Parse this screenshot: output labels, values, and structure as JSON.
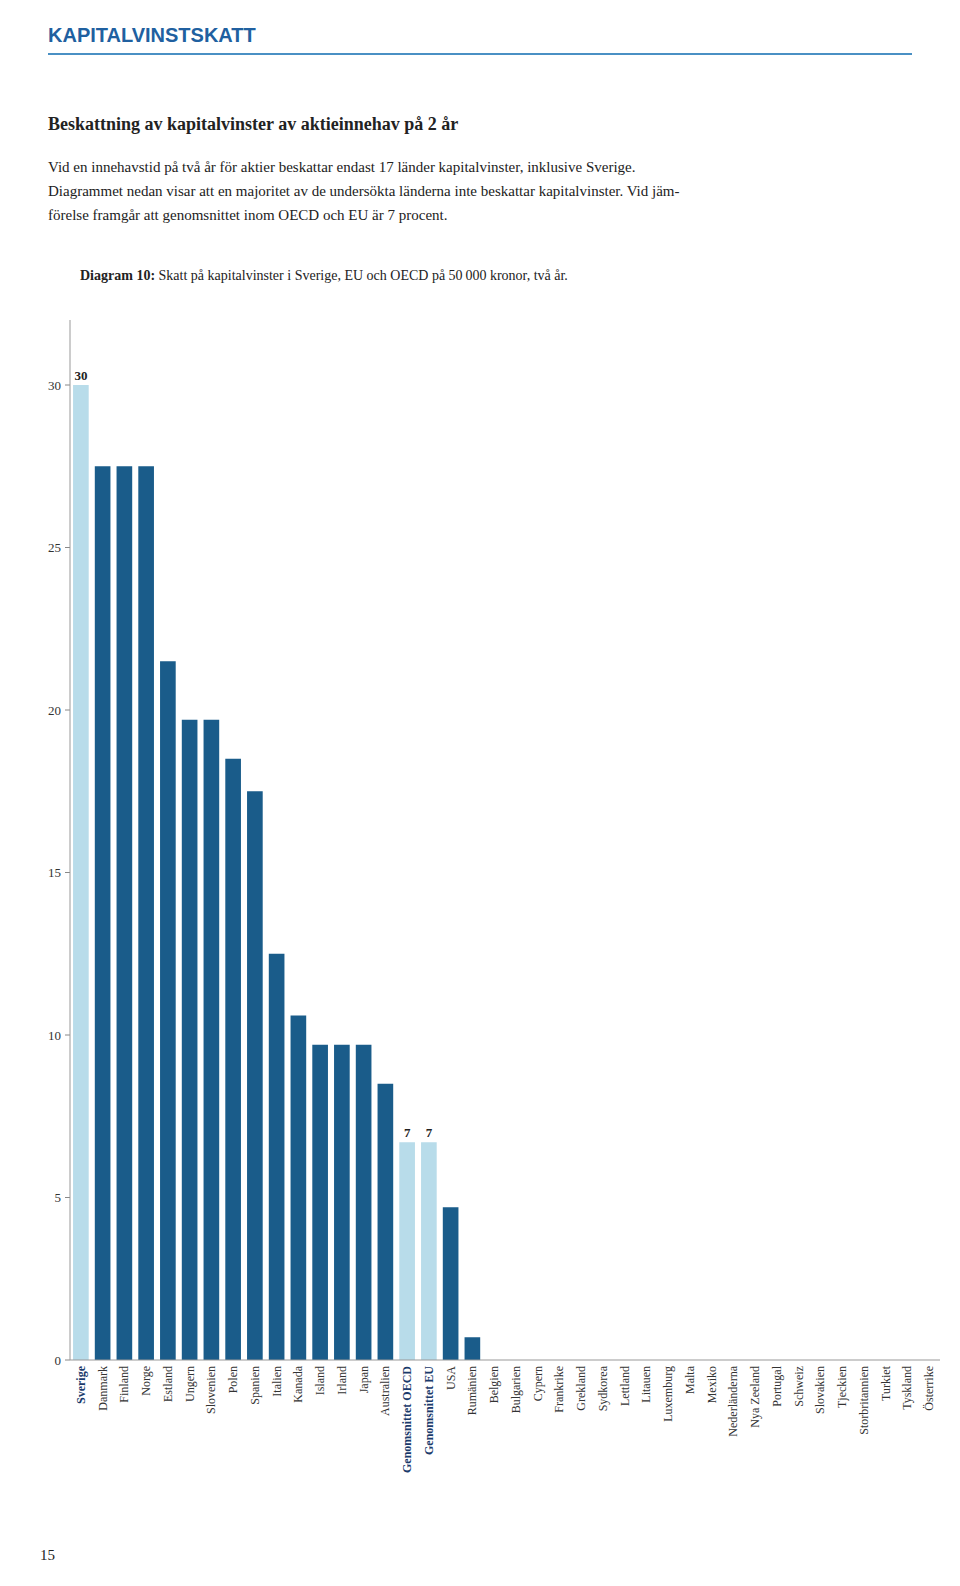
{
  "chart_data": {
    "type": "bar",
    "title": "KAPITALVINSTSKATT",
    "subtitle": "Beskattning av kapitalvinster av aktieinnehav på 2 år",
    "annotations": [
      "Vid en innehavstid på två år för aktier beskattar endast 17 länder kapitalvinster, inklusive Sverige.",
      "Diagrammet nedan visar att en majoritet av de undersökta länderna inte beskattar kapitalvinster. Vid jäm-",
      "förelse framgår att genomsnittet inom OECD och EU är 7 procent.",
      "Diagram 10:",
      " Skatt på kapitalvinster i Sverige, EU och OECD på 50 000 kronor, två år.",
      "15"
    ],
    "categories": [
      "Sverige",
      "Danmark",
      "Finland",
      "Norge",
      "Estland",
      "Ungern",
      "Slovenien",
      "Polen",
      "Spanien",
      "Italien",
      "Kanada",
      "Island",
      "Irland",
      "Japan",
      "Australien",
      "Genomsnittet OECD",
      "Genomsnittet EU",
      "USA",
      "Rumänien",
      "Belgien",
      "Bulgarien",
      "Cypern",
      "Frankrike",
      "Grekland",
      "Sydkorea",
      "Lettland",
      "Litauen",
      "Luxemburg",
      "Malta",
      "Mexiko",
      "Nederländerna",
      "Nya Zeeland",
      "Portugal",
      "Schweiz",
      "Slovakien",
      "Tjeckien",
      "Storbritannien",
      "Turkiet",
      "Tyskland",
      "Österrike"
    ],
    "values": [
      30,
      27.5,
      27.5,
      27.5,
      21.5,
      19.7,
      19.7,
      18.5,
      17.5,
      12.5,
      10.6,
      9.7,
      9.7,
      9.7,
      8.5,
      6.7,
      6.7,
      4.7,
      0.7,
      0,
      0,
      0,
      0,
      0,
      0,
      0,
      0,
      0,
      0,
      0,
      0,
      0,
      0,
      0,
      0,
      0,
      0,
      0,
      0,
      0
    ],
    "data_labels": true,
    "value_labels": [
      "30",
      null,
      null,
      null,
      null,
      null,
      null,
      null,
      null,
      null,
      null,
      null,
      null,
      null,
      null,
      "7",
      "7",
      null,
      null,
      null,
      null,
      null,
      null,
      null,
      null,
      null,
      null,
      null,
      null,
      null,
      null,
      null,
      null,
      null,
      null,
      null,
      null,
      null,
      null,
      null
    ],
    "colors": [
      "#b8dcea",
      "#1a5c8a",
      "#1a5c8a",
      "#1a5c8a",
      "#1a5c8a",
      "#1a5c8a",
      "#1a5c8a",
      "#1a5c8a",
      "#1a5c8a",
      "#1a5c8a",
      "#1a5c8a",
      "#1a5c8a",
      "#1a5c8a",
      "#1a5c8a",
      "#1a5c8a",
      "#b8dcea",
      "#b8dcea",
      "#1a5c8a",
      "#1a5c8a",
      "#1a5c8a",
      "#1a5c8a",
      "#1a5c8a",
      "#1a5c8a",
      "#1a5c8a",
      "#1a5c8a",
      "#1a5c8a",
      "#1a5c8a",
      "#1a5c8a",
      "#1a5c8a",
      "#1a5c8a",
      "#1a5c8a",
      "#1a5c8a",
      "#1a5c8a",
      "#1a5c8a",
      "#1a5c8a",
      "#1a5c8a",
      "#1a5c8a",
      "#1a5c8a",
      "#1a5c8a",
      "#1a5c8a"
    ],
    "ylim": [
      0,
      32
    ],
    "yticks": [
      0,
      5,
      10,
      15,
      20,
      25,
      30
    ],
    "grid": false
  }
}
